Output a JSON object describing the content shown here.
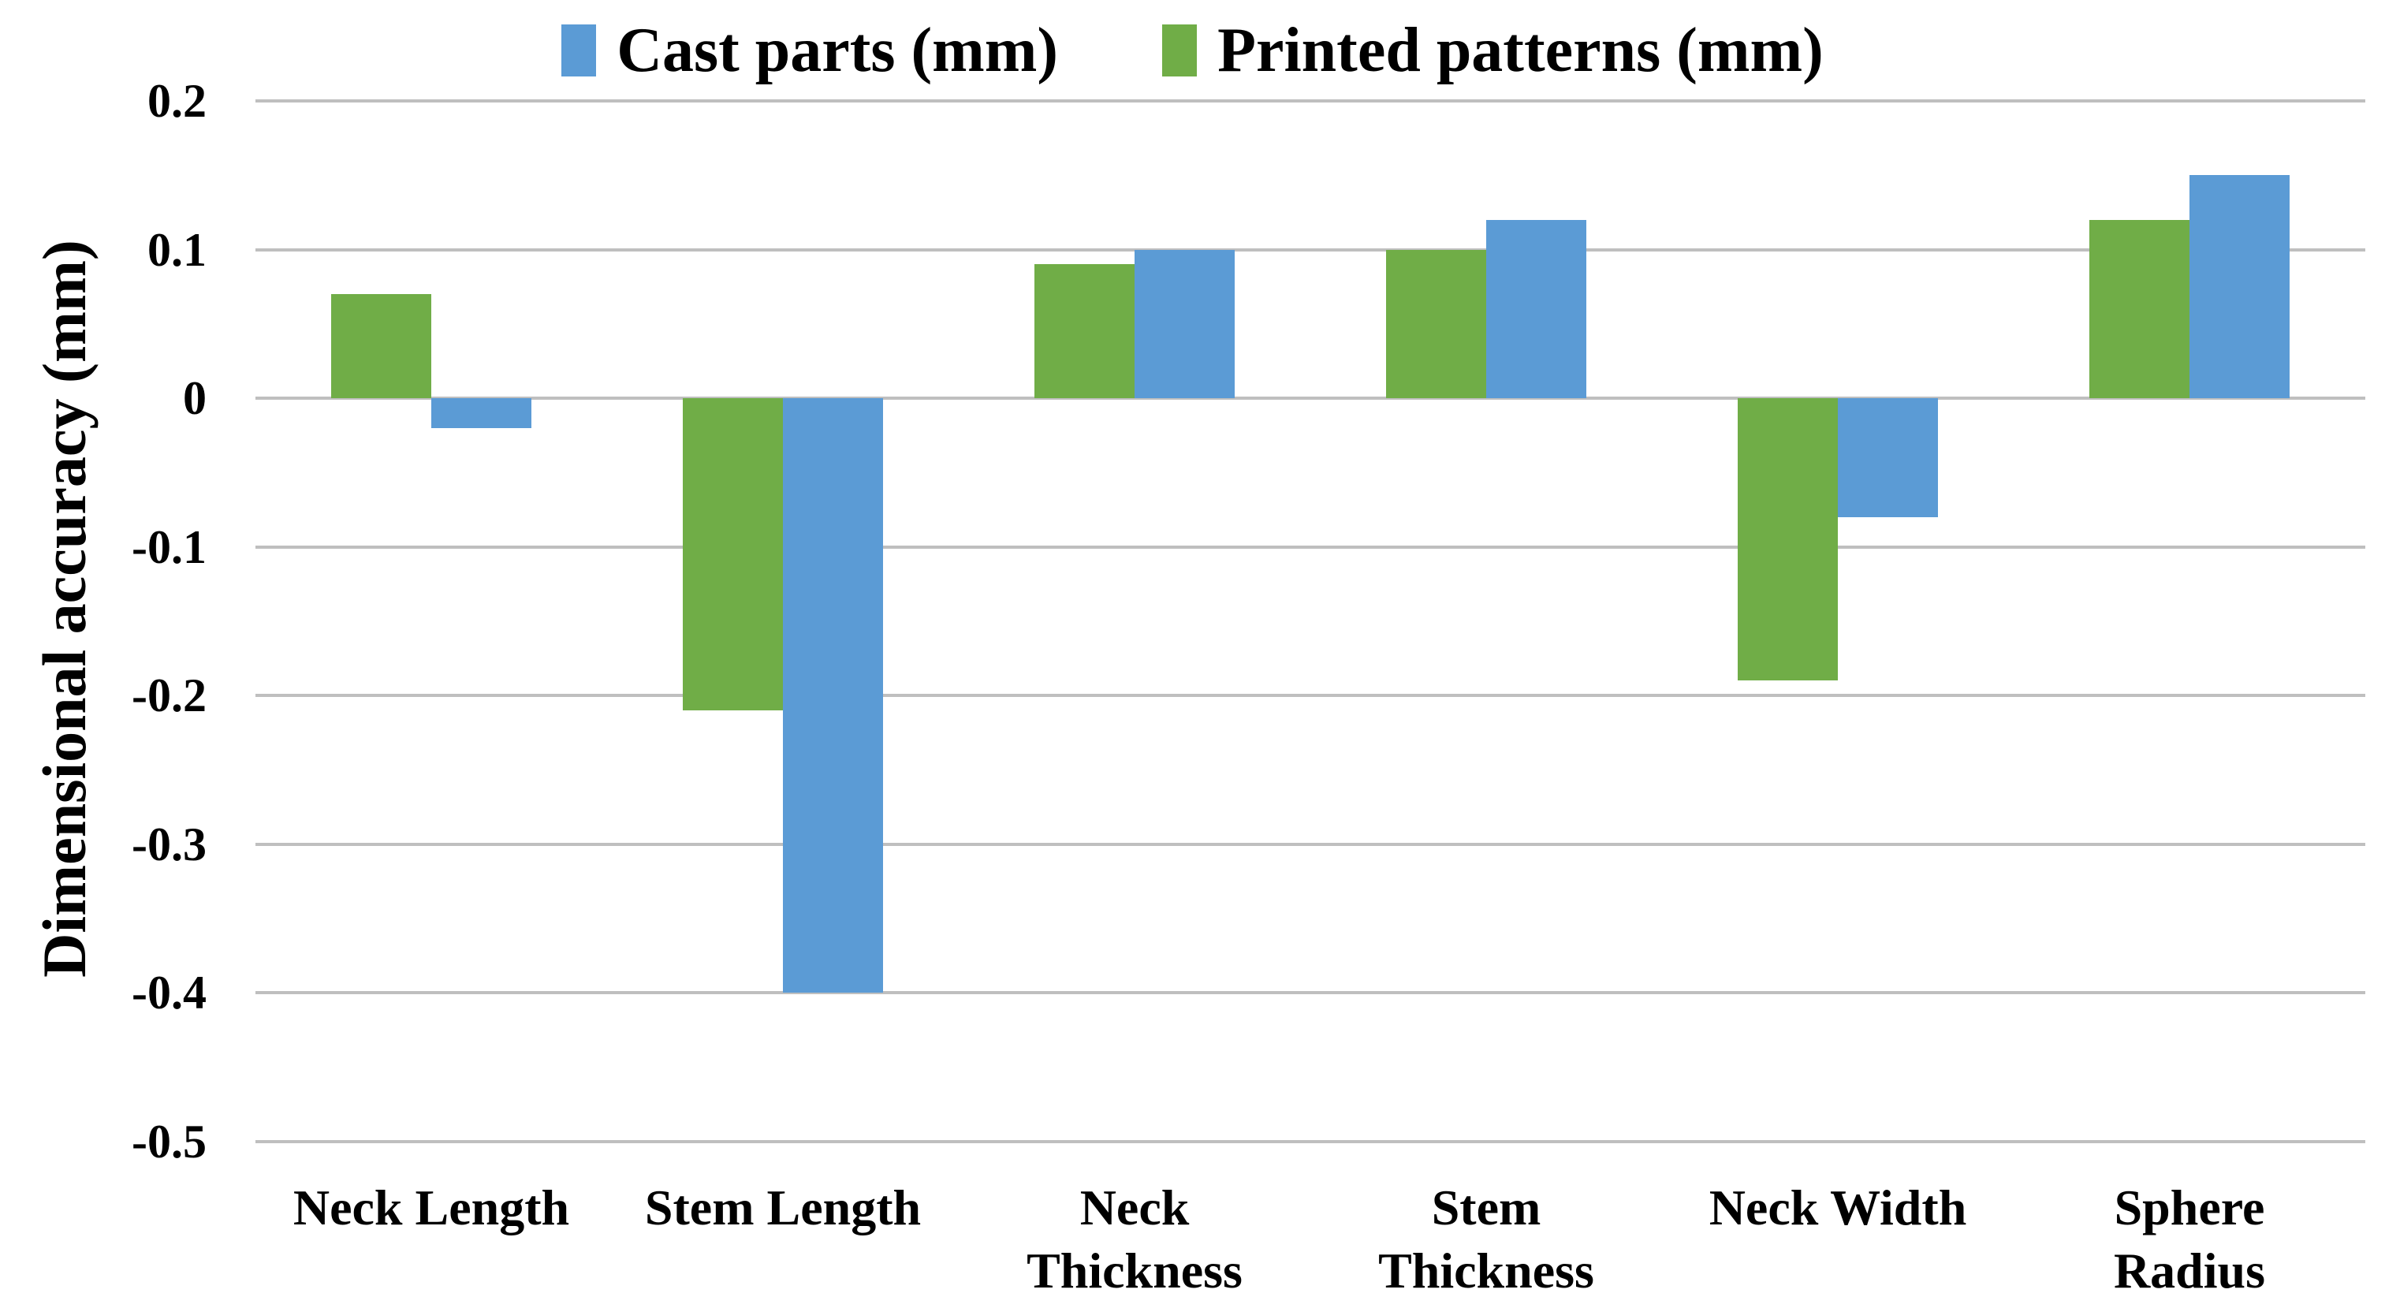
{
  "legend": {
    "items": [
      {
        "label": "Cast parts (mm)",
        "color": "#5B9BD5"
      },
      {
        "label": "Printed patterns (mm)",
        "color": "#70AD47"
      }
    ]
  },
  "y_axis": {
    "title": "Dimensional accuracy (mm)",
    "tick_labels": [
      "0.2",
      "0.1",
      "0",
      "-0.1",
      "-0.2",
      "-0.3",
      "-0.4",
      "-0.5"
    ]
  },
  "chart_data": {
    "type": "bar",
    "title": "",
    "categories": [
      "Neck Length",
      "Stem Length",
      "Neck Thickness",
      "Stem Thickness",
      "Neck Width",
      "Sphere Radius"
    ],
    "categories_display": [
      "Neck Length",
      "Stem Length",
      "Neck\nThickness",
      "Stem\nThickness",
      "Neck Width",
      "Sphere\nRadius"
    ],
    "series": [
      {
        "name": "Cast parts (mm)",
        "color": "#5B9BD5",
        "position_in_group": 1,
        "values": [
          -0.02,
          -0.4,
          0.1,
          0.12,
          -0.08,
          0.15
        ]
      },
      {
        "name": "Printed patterns (mm)",
        "color": "#70AD47",
        "position_in_group": 0,
        "values": [
          0.07,
          -0.21,
          0.09,
          0.1,
          -0.19,
          0.12
        ]
      }
    ],
    "xlabel": "",
    "ylabel": "Dimensional accuracy (mm)",
    "ylim": [
      -0.5,
      0.2
    ],
    "yticks": [
      0.2,
      0.1,
      0,
      -0.1,
      -0.2,
      -0.3,
      -0.4,
      -0.5
    ],
    "ytick_labels": [
      "0.2",
      "0.1",
      "0",
      "-0.1",
      "-0.2",
      "-0.3",
      "-0.4",
      "-0.5"
    ],
    "grid": true,
    "gridline_color": "#BFBFBF",
    "legend_position": "top",
    "bar_gap_within_group": 0
  }
}
